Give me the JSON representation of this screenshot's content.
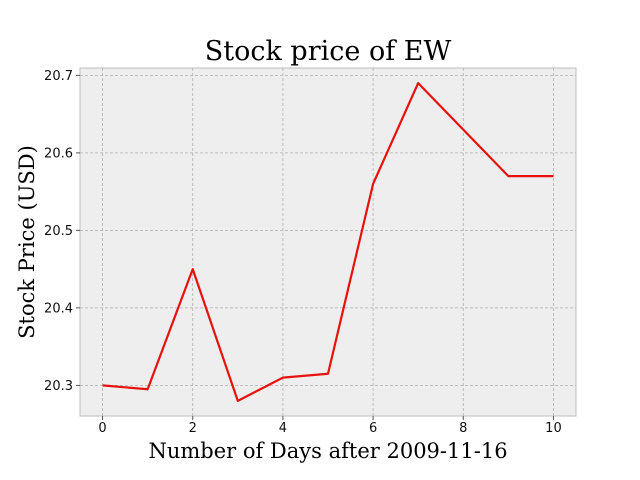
{
  "chart_data": {
    "type": "line",
    "title": "Stock price of EW",
    "xlabel": "Number of Days after 2009-11-16",
    "ylabel": "Stock Price (USD)",
    "x": [
      0,
      1,
      2,
      3,
      4,
      5,
      6,
      7,
      8,
      9,
      10
    ],
    "series": [
      {
        "values": [
          20.3,
          20.295,
          20.45,
          20.28,
          20.31,
          20.315,
          20.56,
          20.69,
          20.63,
          20.57,
          20.57
        ],
        "color": "#e8120c"
      }
    ],
    "xlim": [
      -0.5,
      10.5
    ],
    "ylim": [
      20.2605,
      20.7095
    ],
    "xticks": [
      0,
      2,
      4,
      6,
      8,
      10
    ],
    "yticks": [
      20.3,
      20.4,
      20.5,
      20.6,
      20.7
    ],
    "xtick_labels": [
      "0",
      "2",
      "4",
      "6",
      "8",
      "10"
    ],
    "ytick_labels": [
      "20.3",
      "20.4",
      "20.5",
      "20.6",
      "20.7"
    ],
    "grid": true,
    "legend": "none",
    "background": "#eeeeee"
  }
}
